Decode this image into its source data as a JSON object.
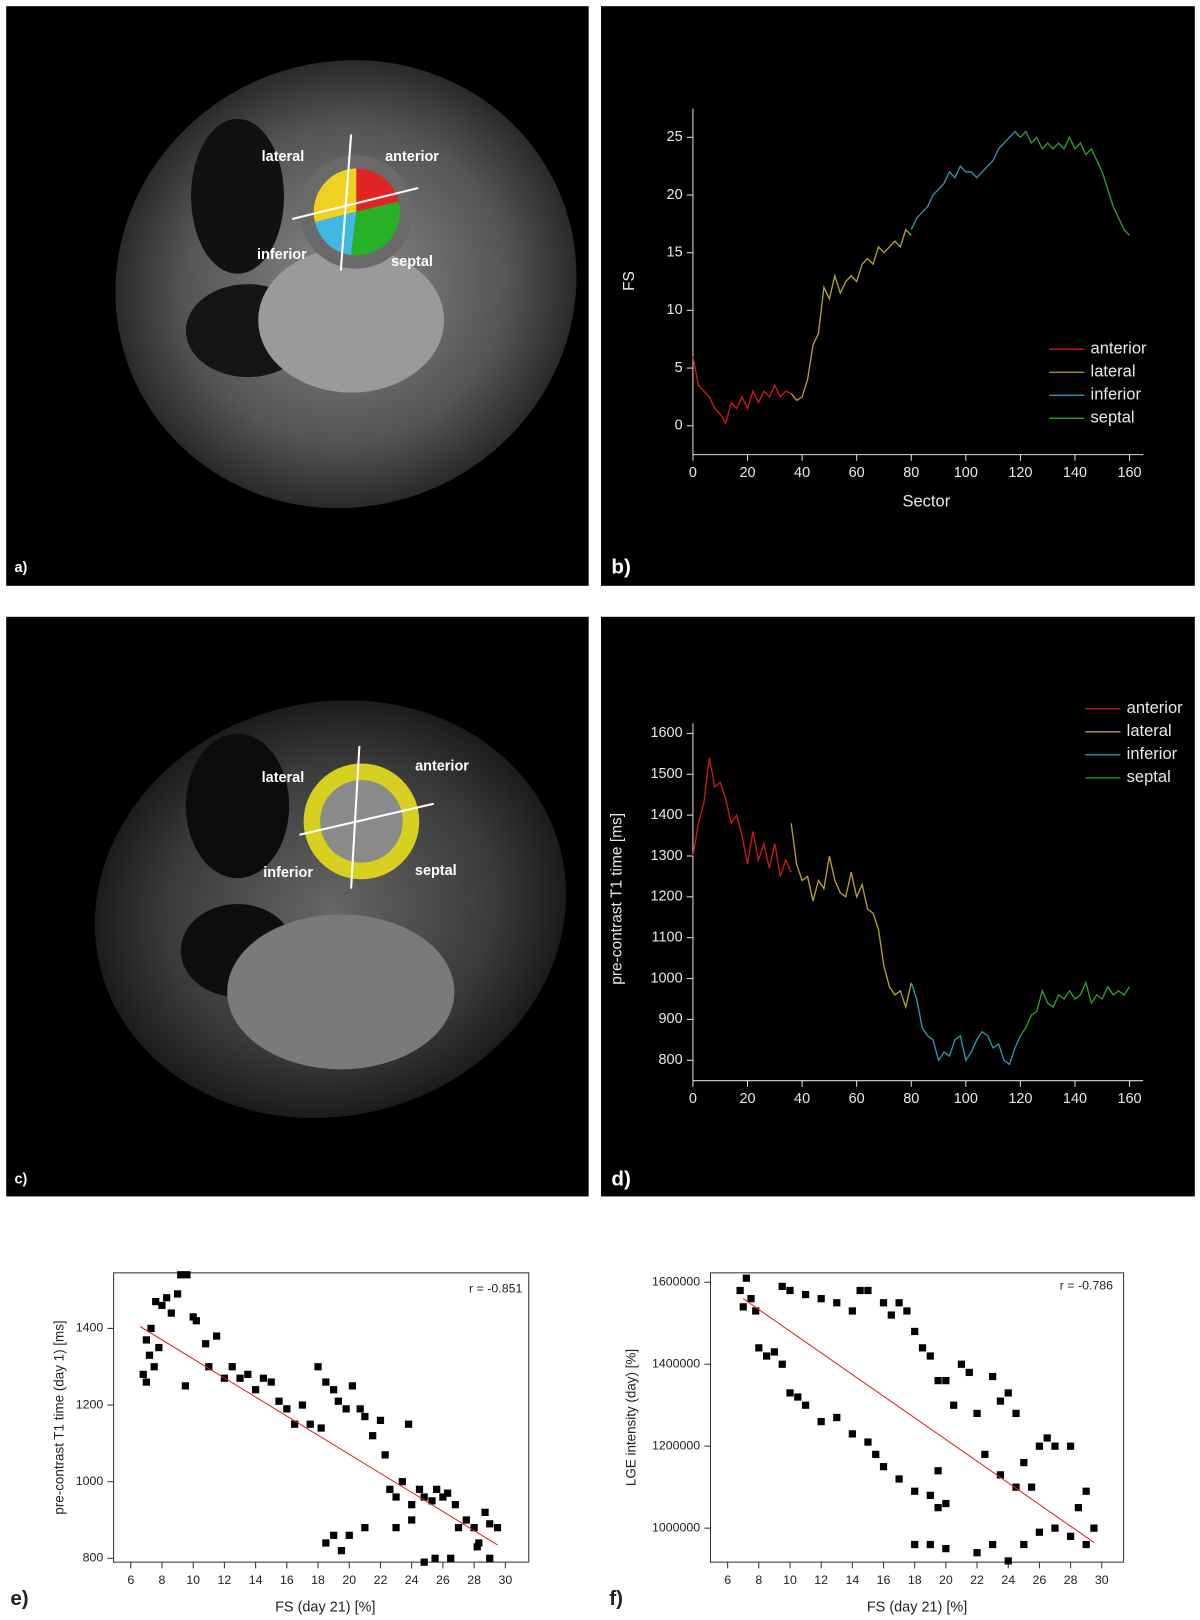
{
  "images": [
    {
      "panel": "a)",
      "labels": [
        "lateral",
        "anterior",
        "inferior",
        "septal"
      ]
    },
    {
      "panel": "c)",
      "labels": [
        "lateral",
        "anterior",
        "inferior",
        "septal"
      ]
    }
  ],
  "chart_data": [
    {
      "type": "line",
      "panel": "b)",
      "xlabel": "Sector",
      "ylabel": "FS",
      "xlim": [
        0,
        165
      ],
      "ylim": [
        -2.5,
        27.5
      ],
      "xticks": [
        0,
        20,
        40,
        60,
        80,
        100,
        120,
        140,
        160
      ],
      "yticks": [
        0,
        5,
        10,
        15,
        20,
        25
      ],
      "legend": "lower right",
      "series": [
        {
          "name": "anterior",
          "color": "#cc1a1a",
          "x": [
            0,
            2,
            4,
            6,
            8,
            10,
            12,
            14,
            16,
            18,
            20,
            22,
            24,
            26,
            28,
            30,
            32,
            34,
            36
          ],
          "values": [
            6,
            3.5,
            3,
            2.5,
            1.5,
            1,
            0.2,
            2,
            1.5,
            2.5,
            1.5,
            3,
            2,
            3,
            2.5,
            3.5,
            2.5,
            3,
            2.8
          ]
        },
        {
          "name": "lateral",
          "color": "#b3a324",
          "x": [
            36,
            38,
            40,
            42,
            44,
            46,
            48,
            50,
            52,
            54,
            56,
            58,
            60,
            62,
            64,
            66,
            68,
            70,
            72,
            74,
            76,
            78,
            80
          ],
          "values": [
            2.8,
            2.2,
            2.5,
            4,
            7,
            8,
            12,
            11,
            13,
            11.5,
            12.5,
            13,
            12.5,
            14,
            14.5,
            14,
            15.5,
            15,
            15.5,
            16,
            15.5,
            17,
            16.5
          ]
        },
        {
          "name": "inferior",
          "color": "#2a98b0",
          "x": [
            80,
            82,
            84,
            86,
            88,
            90,
            92,
            94,
            96,
            98,
            100,
            102,
            104,
            106,
            108,
            110,
            112,
            114,
            116,
            118,
            120
          ],
          "values": [
            17,
            18,
            18.5,
            19,
            20,
            20.5,
            21,
            22,
            21.5,
            22.5,
            22,
            22,
            21.5,
            22,
            22.5,
            23,
            24,
            24.5,
            25,
            25.5,
            25
          ]
        },
        {
          "name": "septal",
          "color": "#2ca02c",
          "x": [
            120,
            122,
            124,
            126,
            128,
            130,
            132,
            134,
            136,
            138,
            140,
            142,
            144,
            146,
            148,
            150,
            152,
            154,
            156,
            158,
            160
          ],
          "values": [
            25,
            25.5,
            24.5,
            25,
            24,
            24.5,
            24,
            24.5,
            24,
            25,
            24,
            24.5,
            23.5,
            24,
            23,
            22,
            20.5,
            19,
            18,
            17,
            16.5
          ]
        }
      ]
    },
    {
      "type": "line",
      "panel": "d)",
      "ylabel": "pre-contrast T1 time [ms]",
      "xlim": [
        0,
        165
      ],
      "ylim": [
        750,
        1625
      ],
      "xticks": [
        0,
        20,
        40,
        60,
        80,
        100,
        120,
        140,
        160
      ],
      "yticks": [
        800,
        900,
        1000,
        1100,
        1200,
        1300,
        1400,
        1500,
        1600
      ],
      "legend": "upper right",
      "series": [
        {
          "name": "anterior",
          "color": "#cc1a1a",
          "x": [
            0,
            2,
            4,
            6,
            8,
            10,
            12,
            14,
            16,
            18,
            20,
            22,
            24,
            26,
            28,
            30,
            32,
            34,
            36
          ],
          "values": [
            1300,
            1380,
            1430,
            1540,
            1470,
            1480,
            1440,
            1380,
            1400,
            1350,
            1280,
            1360,
            1290,
            1330,
            1270,
            1330,
            1250,
            1290,
            1260
          ]
        },
        {
          "name": "lateral",
          "color": "#b3a324",
          "x": [
            36,
            38,
            40,
            42,
            44,
            46,
            48,
            50,
            52,
            54,
            56,
            58,
            60,
            62,
            64,
            66,
            68,
            70,
            72,
            74,
            76,
            78,
            80
          ],
          "values": [
            1380,
            1280,
            1240,
            1250,
            1190,
            1240,
            1220,
            1300,
            1240,
            1210,
            1200,
            1260,
            1200,
            1230,
            1170,
            1160,
            1120,
            1030,
            980,
            960,
            970,
            930,
            990
          ]
        },
        {
          "name": "inferior",
          "color": "#2a98b0",
          "x": [
            80,
            82,
            84,
            86,
            88,
            90,
            92,
            94,
            96,
            98,
            100,
            102,
            104,
            106,
            108,
            110,
            112,
            114,
            116,
            118,
            120
          ],
          "values": [
            990,
            950,
            880,
            860,
            850,
            800,
            820,
            810,
            850,
            860,
            800,
            820,
            850,
            870,
            860,
            830,
            840,
            800,
            790,
            830,
            860
          ]
        },
        {
          "name": "septal",
          "color": "#2ca02c",
          "x": [
            120,
            122,
            124,
            126,
            128,
            130,
            132,
            134,
            136,
            138,
            140,
            142,
            144,
            146,
            148,
            150,
            152,
            154,
            156,
            158,
            160
          ],
          "values": [
            860,
            880,
            910,
            920,
            970,
            940,
            930,
            960,
            950,
            970,
            950,
            960,
            990,
            940,
            960,
            950,
            980,
            960,
            970,
            960,
            980
          ]
        }
      ]
    },
    {
      "type": "scatter",
      "panel": "e)",
      "xlabel": "FS (day 21) [%]",
      "ylabel": "pre-contrast T1 time (day 1) [ms]",
      "annotation": "r = -0.851",
      "color": "#000000",
      "fit_color": "#e02020",
      "xlim": [
        4.9,
        31.5
      ],
      "ylim": [
        790,
        1545
      ],
      "xticks": [
        6,
        8,
        10,
        12,
        14,
        16,
        18,
        20,
        22,
        24,
        26,
        28,
        30
      ],
      "yticks": [
        800,
        1000,
        1200,
        1400
      ],
      "fit": {
        "x": [
          6.6,
          29.5
        ],
        "values": [
          1405,
          835
        ]
      },
      "x": [
        6.8,
        7,
        7.2,
        7,
        7.5,
        7.3,
        7.8,
        7.6,
        8,
        8.3,
        8.6,
        9,
        9.2,
        9.6,
        9.5,
        10,
        10.2,
        10.8,
        11,
        11.5,
        12,
        12.5,
        13,
        13.5,
        14,
        14.5,
        15,
        15.5,
        16,
        16.5,
        17,
        17.5,
        18,
        18.2,
        18.5,
        19,
        19.3,
        19.8,
        20.2,
        20.7,
        21,
        21.5,
        22,
        22.3,
        22.6,
        23,
        23.4,
        23.8,
        24,
        24.5,
        24.8,
        25.3,
        25.6,
        26,
        26.3,
        26.8,
        27,
        27.5,
        28,
        28.3,
        28.7,
        29,
        29.5,
        29,
        28.2,
        18.5,
        19,
        19.5,
        20,
        21,
        24.8,
        25.5,
        26.5,
        23,
        24
      ],
      "values": [
        1280,
        1370,
        1330,
        1260,
        1300,
        1400,
        1350,
        1470,
        1460,
        1480,
        1440,
        1490,
        1540,
        1540,
        1250,
        1430,
        1420,
        1360,
        1300,
        1380,
        1270,
        1300,
        1270,
        1280,
        1240,
        1270,
        1260,
        1210,
        1190,
        1150,
        1200,
        1150,
        1300,
        1140,
        1260,
        1240,
        1210,
        1190,
        1250,
        1190,
        1170,
        1120,
        1160,
        1070,
        980,
        960,
        1000,
        1150,
        940,
        980,
        960,
        950,
        980,
        960,
        970,
        940,
        880,
        900,
        880,
        840,
        920,
        890,
        880,
        800,
        830,
        840,
        860,
        820,
        860,
        880,
        790,
        800,
        800,
        880,
        900
      ]
    },
    {
      "type": "scatter",
      "panel": "f)",
      "xlabel": "FS (day 21) [%]",
      "ylabel": "LGE intensity (day) [%]",
      "annotation": "r = -0.786",
      "color": "#000000",
      "fit_color": "#e02020",
      "xlim": [
        4.9,
        31.4
      ],
      "ylim": [
        917000,
        1623000
      ],
      "xticks": [
        6,
        8,
        10,
        12,
        14,
        16,
        18,
        20,
        22,
        24,
        26,
        28,
        30
      ],
      "yticks": [
        1000000,
        1200000,
        1400000,
        1600000
      ],
      "fit": {
        "x": [
          7,
          29.5
        ],
        "values": [
          1560000,
          965000
        ]
      },
      "x": [
        6.8,
        7,
        7.2,
        7.5,
        7.8,
        8,
        8.5,
        9,
        9.5,
        10,
        10.5,
        11,
        12,
        13,
        14,
        15,
        15.5,
        16,
        17,
        18,
        19,
        19.5,
        20,
        9.5,
        10,
        11,
        12,
        13,
        14,
        14.5,
        15,
        16,
        16.5,
        17,
        17.5,
        18,
        18.5,
        19,
        19.5,
        20,
        20.5,
        21,
        21.5,
        22,
        22.5,
        23,
        23.5,
        24,
        24.5,
        25,
        25.5,
        26,
        26.5,
        27,
        28,
        28.5,
        29,
        29.5,
        29,
        28,
        27,
        26,
        25,
        24,
        23,
        22,
        20,
        19,
        18,
        24.5,
        23.5,
        19.5
      ],
      "values": [
        1580000,
        1540000,
        1610000,
        1560000,
        1530000,
        1440000,
        1420000,
        1430000,
        1400000,
        1330000,
        1320000,
        1300000,
        1260000,
        1270000,
        1230000,
        1210000,
        1180000,
        1150000,
        1120000,
        1090000,
        1080000,
        1050000,
        1060000,
        1590000,
        1580000,
        1570000,
        1560000,
        1550000,
        1530000,
        1580000,
        1580000,
        1550000,
        1520000,
        1550000,
        1530000,
        1480000,
        1440000,
        1420000,
        1360000,
        1360000,
        1300000,
        1400000,
        1380000,
        1280000,
        1180000,
        1370000,
        1310000,
        1330000,
        1280000,
        1160000,
        1100000,
        1200000,
        1220000,
        1200000,
        1200000,
        1050000,
        1090000,
        1000000,
        960000,
        980000,
        1000000,
        990000,
        960000,
        920000,
        960000,
        940000,
        950000,
        960000,
        960000,
        1100000,
        1130000,
        1140000
      ]
    }
  ]
}
